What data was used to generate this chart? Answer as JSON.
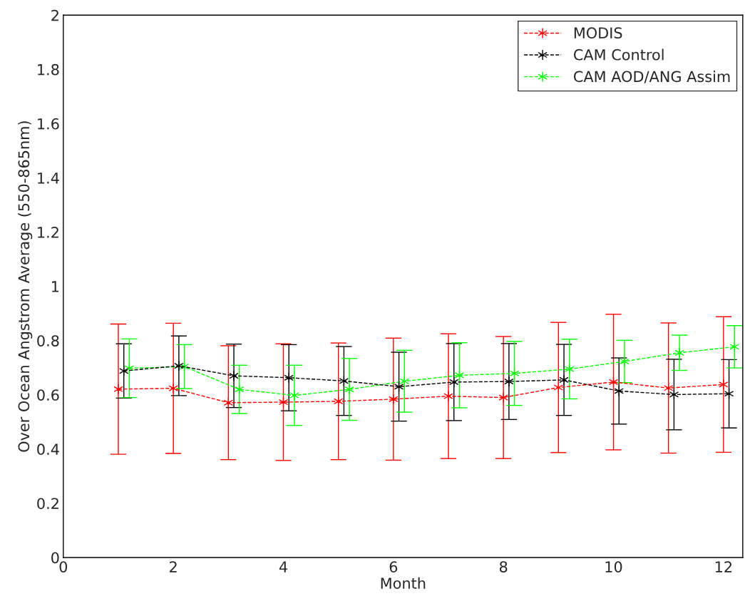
{
  "chart_data": {
    "type": "line",
    "xlabel": "Month",
    "ylabel": "Over Ocean Angstrom Average (550-865nm)",
    "xlim": [
      0,
      12.35
    ],
    "xticks": [
      0,
      2,
      4,
      6,
      8,
      10,
      12
    ],
    "ylim": [
      0,
      2
    ],
    "yticks": [
      0,
      0.2,
      0.4,
      0.6,
      0.8,
      1,
      1.2,
      1.4,
      1.6,
      1.8,
      2
    ],
    "legend": "top right",
    "marker": "cross",
    "line_style": "dashed",
    "grid": false,
    "series": [
      {
        "name": "MODIS",
        "color": "#ff0000",
        "x": [
          1,
          2,
          3,
          4,
          5,
          6,
          7,
          8,
          9,
          10,
          11,
          12
        ],
        "values": [
          0.621,
          0.624,
          0.571,
          0.573,
          0.576,
          0.584,
          0.595,
          0.59,
          0.627,
          0.647,
          0.625,
          0.638
        ],
        "errors": [
          0.24,
          0.24,
          0.21,
          0.215,
          0.215,
          0.225,
          0.23,
          0.225,
          0.24,
          0.25,
          0.24,
          0.25
        ]
      },
      {
        "name": "CAM Control",
        "color": "#000000",
        "x": [
          1.1,
          2.1,
          3.1,
          4.1,
          5.1,
          6.1,
          7.1,
          8.1,
          9.1,
          10.1,
          11.1,
          12.1
        ],
        "values": [
          0.688,
          0.707,
          0.67,
          0.663,
          0.651,
          0.63,
          0.647,
          0.649,
          0.655,
          0.614,
          0.601,
          0.604
        ],
        "errors": [
          0.1,
          0.11,
          0.117,
          0.122,
          0.127,
          0.127,
          0.142,
          0.14,
          0.131,
          0.122,
          0.13,
          0.126
        ]
      },
      {
        "name": "CAM AOD/ANG Assim",
        "color": "#00ff00",
        "x": [
          1.2,
          2.2,
          3.2,
          4.2,
          5.2,
          6.2,
          7.2,
          8.2,
          9.2,
          10.2,
          11.2,
          12.2
        ],
        "values": [
          0.698,
          0.704,
          0.62,
          0.598,
          0.62,
          0.65,
          0.672,
          0.679,
          0.695,
          0.723,
          0.755,
          0.777
        ],
        "errors": [
          0.108,
          0.081,
          0.089,
          0.111,
          0.114,
          0.114,
          0.12,
          0.118,
          0.11,
          0.078,
          0.065,
          0.078
        ]
      }
    ]
  }
}
